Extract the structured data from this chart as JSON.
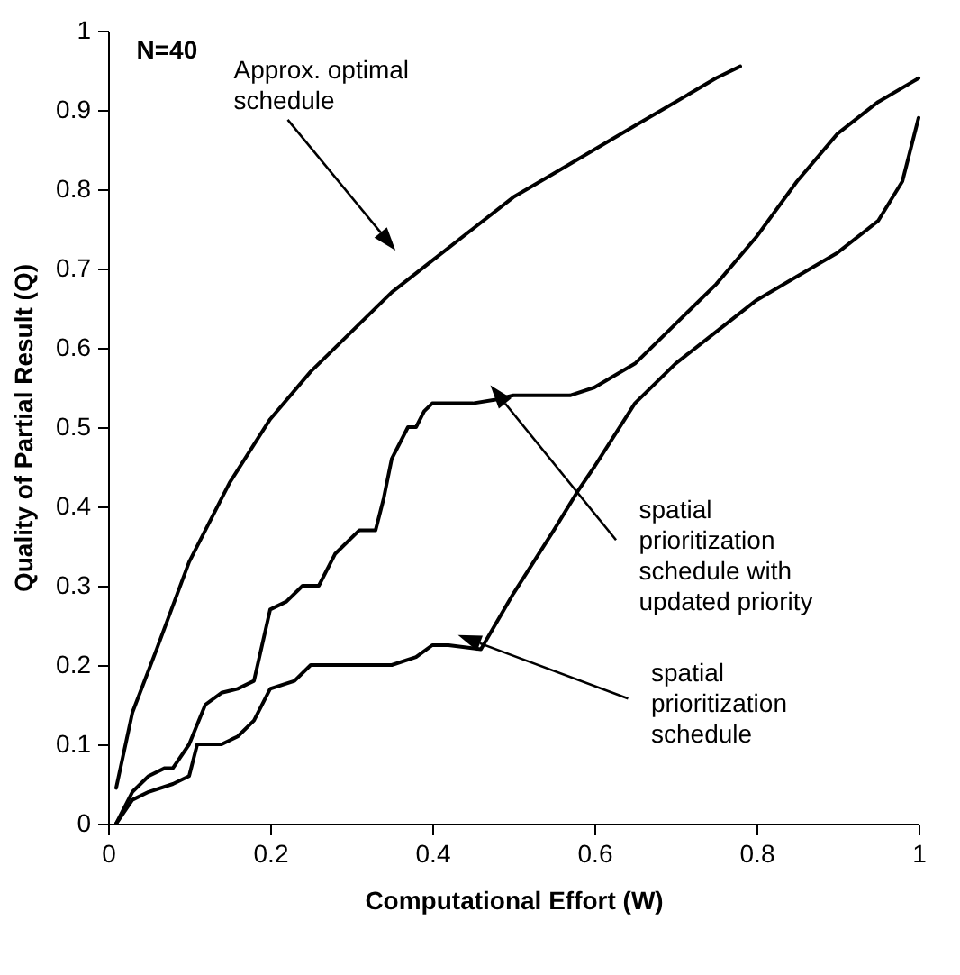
{
  "chart_data": {
    "type": "line",
    "xlabel": "Computational Effort (W)",
    "ylabel": "Quality of Partial Result (Q)",
    "annotations": [
      "N=40",
      "Approx. optimal schedule",
      {
        "text": "spatial prioritization schedule with updated priority",
        "x": 0.485,
        "y": 0.53
      },
      {
        "text": "spatial prioritization schedule",
        "x": 0.445,
        "y": 0.215
      }
    ],
    "xlim": [
      0,
      1
    ],
    "ylim": [
      0,
      1
    ],
    "xticks": [
      0,
      0.2,
      0.4,
      0.6,
      0.8,
      1
    ],
    "yticks": [
      0,
      0.1,
      0.2,
      0.3,
      0.4,
      0.5,
      0.6,
      0.7,
      0.8,
      0.9,
      1
    ],
    "line_style": "solid",
    "series": [
      {
        "color": "#000000",
        "x": [
          0.01,
          0.03,
          0.06,
          0.1,
          0.15,
          0.2,
          0.25,
          0.3,
          0.35,
          0.4,
          0.45,
          0.5,
          0.55,
          0.6,
          0.65,
          0.7,
          0.75,
          0.78
        ],
        "values": [
          0.045,
          0.14,
          0.22,
          0.33,
          0.43,
          0.51,
          0.57,
          0.62,
          0.67,
          0.71,
          0.75,
          0.79,
          0.82,
          0.85,
          0.88,
          0.91,
          0.94,
          0.955
        ]
      },
      {
        "color": "#000000",
        "x": [
          0.01,
          0.03,
          0.05,
          0.07,
          0.08,
          0.1,
          0.12,
          0.14,
          0.16,
          0.18,
          0.2,
          0.22,
          0.24,
          0.26,
          0.28,
          0.31,
          0.33,
          0.34,
          0.35,
          0.37,
          0.38,
          0.39,
          0.4,
          0.45,
          0.48,
          0.5,
          0.55,
          0.57,
          0.6,
          0.65,
          0.7,
          0.75,
          0.8,
          0.85,
          0.9,
          0.95,
          1
        ],
        "values": [
          0,
          0.04,
          0.06,
          0.07,
          0.07,
          0.1,
          0.15,
          0.165,
          0.17,
          0.18,
          0.27,
          0.28,
          0.3,
          0.3,
          0.34,
          0.37,
          0.37,
          0.41,
          0.46,
          0.5,
          0.5,
          0.52,
          0.53,
          0.53,
          0.535,
          0.54,
          0.54,
          0.54,
          0.55,
          0.58,
          0.63,
          0.68,
          0.74,
          0.81,
          0.87,
          0.91,
          0.94
        ]
      },
      {
        "color": "#000000",
        "x": [
          0.01,
          0.03,
          0.05,
          0.08,
          0.1,
          0.11,
          0.14,
          0.16,
          0.18,
          0.2,
          0.23,
          0.25,
          0.35,
          0.38,
          0.4,
          0.42,
          0.46,
          0.5,
          0.55,
          0.58,
          0.6,
          0.65,
          0.7,
          0.75,
          0.8,
          0.85,
          0.9,
          0.95,
          0.98,
          1
        ],
        "values": [
          0,
          0.03,
          0.04,
          0.05,
          0.06,
          0.1,
          0.1,
          0.11,
          0.13,
          0.17,
          0.18,
          0.2,
          0.2,
          0.21,
          0.225,
          0.225,
          0.22,
          0.29,
          0.37,
          0.42,
          0.45,
          0.53,
          0.58,
          0.62,
          0.66,
          0.69,
          0.72,
          0.76,
          0.81,
          0.89
        ]
      }
    ]
  }
}
